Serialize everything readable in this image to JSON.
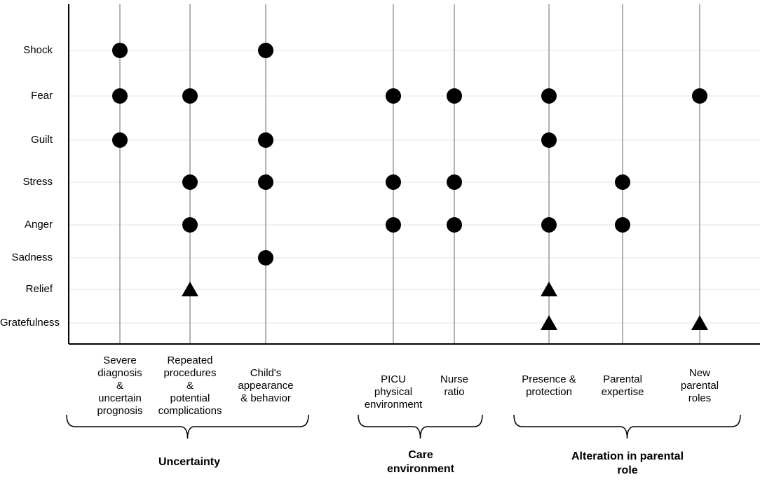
{
  "chart_data": {
    "type": "scatter",
    "title": "",
    "xlabel": "",
    "ylabel": "",
    "grid": true,
    "legend": "none",
    "emotions": [
      "Shock",
      "Fear",
      "Guilt",
      "Stress",
      "Anger",
      "Sadness",
      "Relief",
      "Gratefulness"
    ],
    "factors": [
      {
        "label_lines": [
          "Severe",
          "diagnosis",
          "&",
          "uncertain",
          "prognosis"
        ]
      },
      {
        "label_lines": [
          "Repeated",
          "procedures",
          "&",
          "potential",
          "complications"
        ]
      },
      {
        "label_lines": [
          "Child's",
          "appearance",
          "& behavior"
        ]
      },
      {
        "label_lines": [
          "PICU",
          "physical",
          "environment"
        ]
      },
      {
        "label_lines": [
          "Nurse",
          "ratio"
        ]
      },
      {
        "label_lines": [
          "Presence &",
          "protection"
        ]
      },
      {
        "label_lines": [
          "Parental",
          "expertise"
        ]
      },
      {
        "label_lines": [
          "New",
          "parental",
          "roles"
        ]
      }
    ],
    "groups": [
      {
        "label_lines": [
          "Uncertainty"
        ],
        "factor_indices": [
          0,
          1,
          2
        ]
      },
      {
        "label_lines": [
          "Care",
          "environment"
        ],
        "factor_indices": [
          3,
          4
        ]
      },
      {
        "label_lines": [
          "Alteration in parental",
          "role"
        ],
        "factor_indices": [
          5,
          6,
          7
        ]
      }
    ],
    "points": [
      {
        "factor": 0,
        "emotion": "Shock",
        "marker": "circle"
      },
      {
        "factor": 0,
        "emotion": "Fear",
        "marker": "circle"
      },
      {
        "factor": 0,
        "emotion": "Guilt",
        "marker": "circle"
      },
      {
        "factor": 1,
        "emotion": "Fear",
        "marker": "circle"
      },
      {
        "factor": 1,
        "emotion": "Stress",
        "marker": "circle"
      },
      {
        "factor": 1,
        "emotion": "Anger",
        "marker": "circle"
      },
      {
        "factor": 1,
        "emotion": "Relief",
        "marker": "triangle"
      },
      {
        "factor": 2,
        "emotion": "Shock",
        "marker": "circle"
      },
      {
        "factor": 2,
        "emotion": "Guilt",
        "marker": "circle"
      },
      {
        "factor": 2,
        "emotion": "Stress",
        "marker": "circle"
      },
      {
        "factor": 2,
        "emotion": "Sadness",
        "marker": "circle"
      },
      {
        "factor": 3,
        "emotion": "Fear",
        "marker": "circle"
      },
      {
        "factor": 3,
        "emotion": "Stress",
        "marker": "circle"
      },
      {
        "factor": 3,
        "emotion": "Anger",
        "marker": "circle"
      },
      {
        "factor": 4,
        "emotion": "Fear",
        "marker": "circle"
      },
      {
        "factor": 4,
        "emotion": "Stress",
        "marker": "circle"
      },
      {
        "factor": 4,
        "emotion": "Anger",
        "marker": "circle"
      },
      {
        "factor": 5,
        "emotion": "Fear",
        "marker": "circle"
      },
      {
        "factor": 5,
        "emotion": "Guilt",
        "marker": "circle"
      },
      {
        "factor": 5,
        "emotion": "Anger",
        "marker": "circle"
      },
      {
        "factor": 5,
        "emotion": "Relief",
        "marker": "triangle"
      },
      {
        "factor": 5,
        "emotion": "Gratefulness",
        "marker": "triangle"
      },
      {
        "factor": 6,
        "emotion": "Stress",
        "marker": "circle"
      },
      {
        "factor": 6,
        "emotion": "Anger",
        "marker": "circle"
      },
      {
        "factor": 7,
        "emotion": "Fear",
        "marker": "circle"
      },
      {
        "factor": 7,
        "emotion": "Gratefulness",
        "marker": "triangle"
      }
    ],
    "colors": {
      "marker": "#000000",
      "axis": "#000000",
      "vertical_line": "#b3b3b3",
      "gridline": "#e3e3e3"
    }
  }
}
